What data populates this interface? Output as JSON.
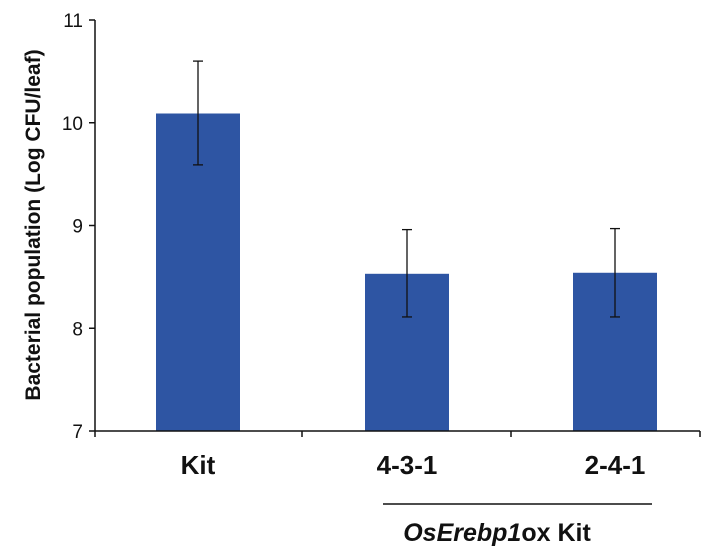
{
  "chart_data": {
    "type": "bar",
    "categories": [
      "Kit",
      "4-3-1",
      "2-4-1"
    ],
    "values": [
      10.09,
      8.53,
      8.54
    ],
    "error_upper": [
      10.6,
      8.96,
      8.97
    ],
    "error_lower": [
      9.59,
      8.11,
      8.11
    ],
    "ylabel": "Bacterial population (Log CFU/leaf)",
    "ylim": [
      7,
      11
    ],
    "yticks": [
      7,
      8,
      9,
      10,
      11
    ],
    "bar_color": "#2e55a3",
    "grid": false,
    "group_label": {
      "italic": "OsErebp1",
      "rest": "ox Kit",
      "spans": [
        "4-3-1",
        "2-4-1"
      ]
    }
  }
}
